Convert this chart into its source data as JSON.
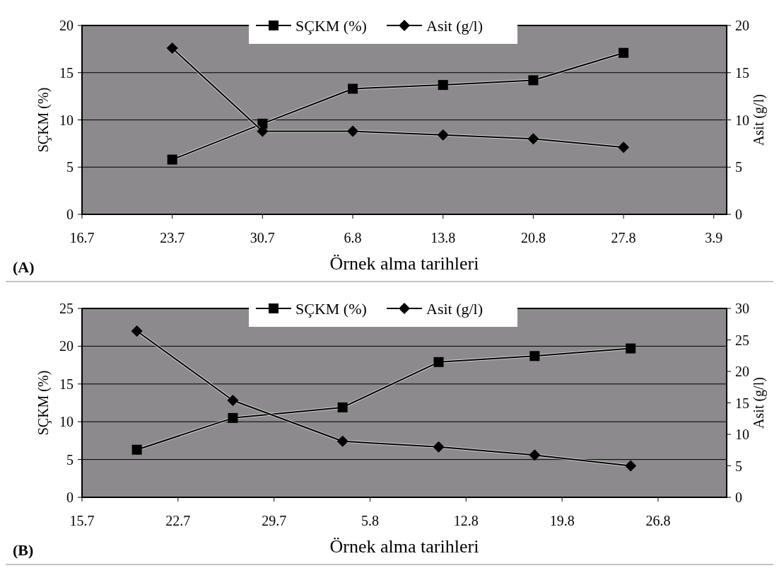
{
  "chart_data": [
    {
      "type": "line",
      "xlabel": "Örnek alma tarihleri",
      "ylabel": "SÇKM (%)",
      "y2label": "Asit (g/l)",
      "annotations": [
        "(A)"
      ],
      "xlim": [
        "--07-16",
        "--09-04"
      ],
      "xticks": [
        {
          "value": "--07-16",
          "label": "16.7"
        },
        {
          "value": "--07-23",
          "label": "23.7"
        },
        {
          "value": "--07-30",
          "label": "30.7"
        },
        {
          "value": "--08-06",
          "label": "6.8"
        },
        {
          "value": "--08-13",
          "label": "13.8"
        },
        {
          "value": "--08-20",
          "label": "20.8"
        },
        {
          "value": "--08-27",
          "label": "27.8"
        },
        {
          "value": "--09-03",
          "label": "3.9"
        }
      ],
      "ylim": [
        0,
        20
      ],
      "yticks": [
        0,
        5,
        10,
        15,
        20
      ],
      "y2lim": [
        0,
        20
      ],
      "y2ticks": [
        0,
        5,
        10,
        15,
        20
      ],
      "grid": "y",
      "legend": "top",
      "series": [
        {
          "name": "SÇKM (%)",
          "color": "#000000",
          "marker": "square",
          "x": [
            "--07-23",
            "--07-30",
            "--08-06",
            "--08-13",
            "--08-20",
            "--08-27"
          ],
          "values": [
            5.8,
            9.6,
            13.3,
            13.7,
            14.2,
            17.1
          ]
        },
        {
          "name": "Asit (g/l)",
          "color": "#000000",
          "marker": "diamond",
          "axis": "y2",
          "x": [
            "--07-23",
            "--07-30",
            "--08-06",
            "--08-13",
            "--08-20",
            "--08-27"
          ],
          "values": [
            17.6,
            8.8,
            8.8,
            8.4,
            8.0,
            7.1
          ]
        }
      ]
    },
    {
      "type": "line",
      "xlabel": "Örnek alma tarihleri",
      "ylabel": "SÇKM (%)",
      "y2label": "Asit (g/l)",
      "annotations": [
        "(B)"
      ],
      "xlim": [
        "--07-15",
        "--08-31"
      ],
      "xticks": [
        {
          "value": "--07-15",
          "label": "15.7"
        },
        {
          "value": "--07-22",
          "label": "22.7"
        },
        {
          "value": "--07-29",
          "label": "29.7"
        },
        {
          "value": "--08-05",
          "label": "5.8"
        },
        {
          "value": "--08-12",
          "label": "12.8"
        },
        {
          "value": "--08-19",
          "label": "19.8"
        },
        {
          "value": "--08-26",
          "label": "26.8"
        }
      ],
      "ylim": [
        0,
        25
      ],
      "yticks": [
        0,
        5,
        10,
        15,
        20,
        25
      ],
      "y2lim": [
        0,
        30
      ],
      "y2ticks": [
        0,
        5,
        10,
        15,
        20,
        25,
        30
      ],
      "grid": "y",
      "legend": "top",
      "series": [
        {
          "name": "SÇKM (%)",
          "color": "#000000",
          "marker": "square",
          "x": [
            "--07-19",
            "--07-26",
            "--08-03",
            "--08-10",
            "--08-17",
            "--08-24"
          ],
          "values": [
            6.3,
            10.5,
            11.9,
            17.9,
            18.7,
            19.7
          ]
        },
        {
          "name": "Asit (g/l)",
          "color": "#000000",
          "marker": "diamond",
          "axis": "y2",
          "x": [
            "--07-19",
            "--07-26",
            "--08-03",
            "--08-10",
            "--08-17",
            "--08-24"
          ],
          "values": [
            26.4,
            15.4,
            8.9,
            8.0,
            6.7,
            5.0
          ]
        }
      ]
    }
  ]
}
